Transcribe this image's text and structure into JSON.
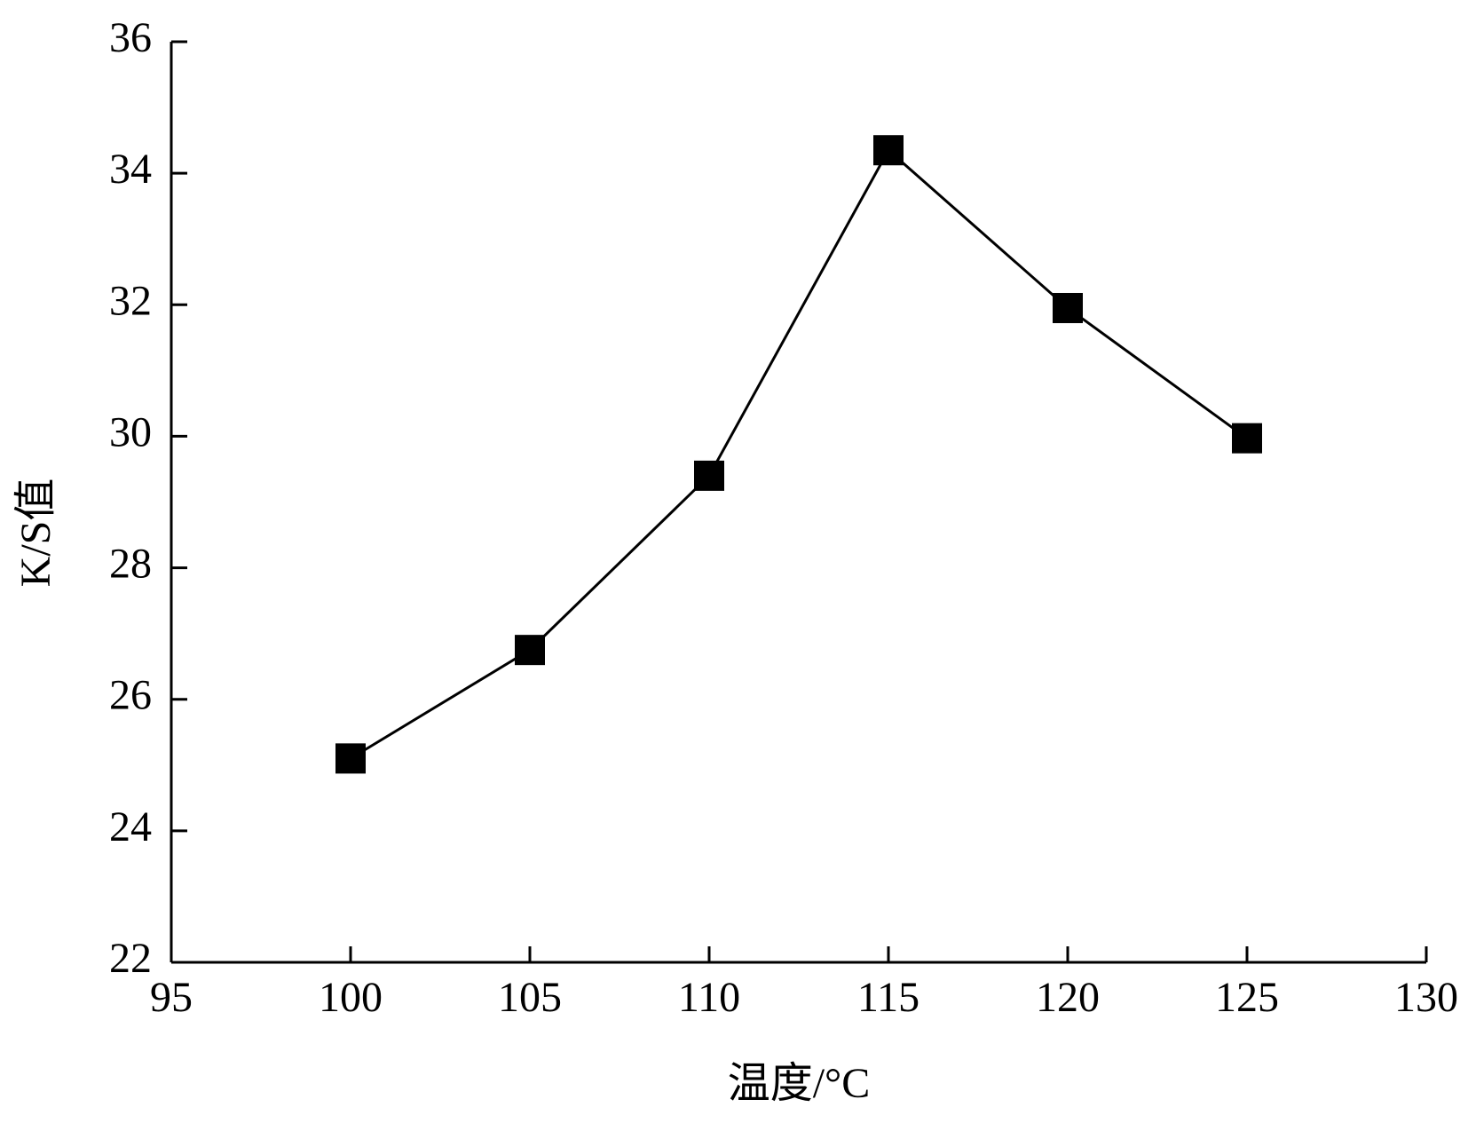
{
  "chart_data": {
    "type": "line",
    "x_label": "温度/°C",
    "y_label": "K/S值",
    "x": [
      100,
      105,
      110,
      115,
      120,
      125
    ],
    "series": [
      {
        "color": "#000000",
        "values": [
          25.1,
          26.75,
          29.4,
          34.35,
          31.95,
          29.97
        ]
      }
    ],
    "xlim": [
      95,
      130
    ],
    "xticks": [
      95,
      100,
      105,
      110,
      115,
      120,
      125,
      130
    ],
    "ylim": [
      22,
      36
    ],
    "yticks": [
      22,
      24,
      26,
      28,
      30,
      32,
      34,
      36
    ],
    "grid": false
  }
}
